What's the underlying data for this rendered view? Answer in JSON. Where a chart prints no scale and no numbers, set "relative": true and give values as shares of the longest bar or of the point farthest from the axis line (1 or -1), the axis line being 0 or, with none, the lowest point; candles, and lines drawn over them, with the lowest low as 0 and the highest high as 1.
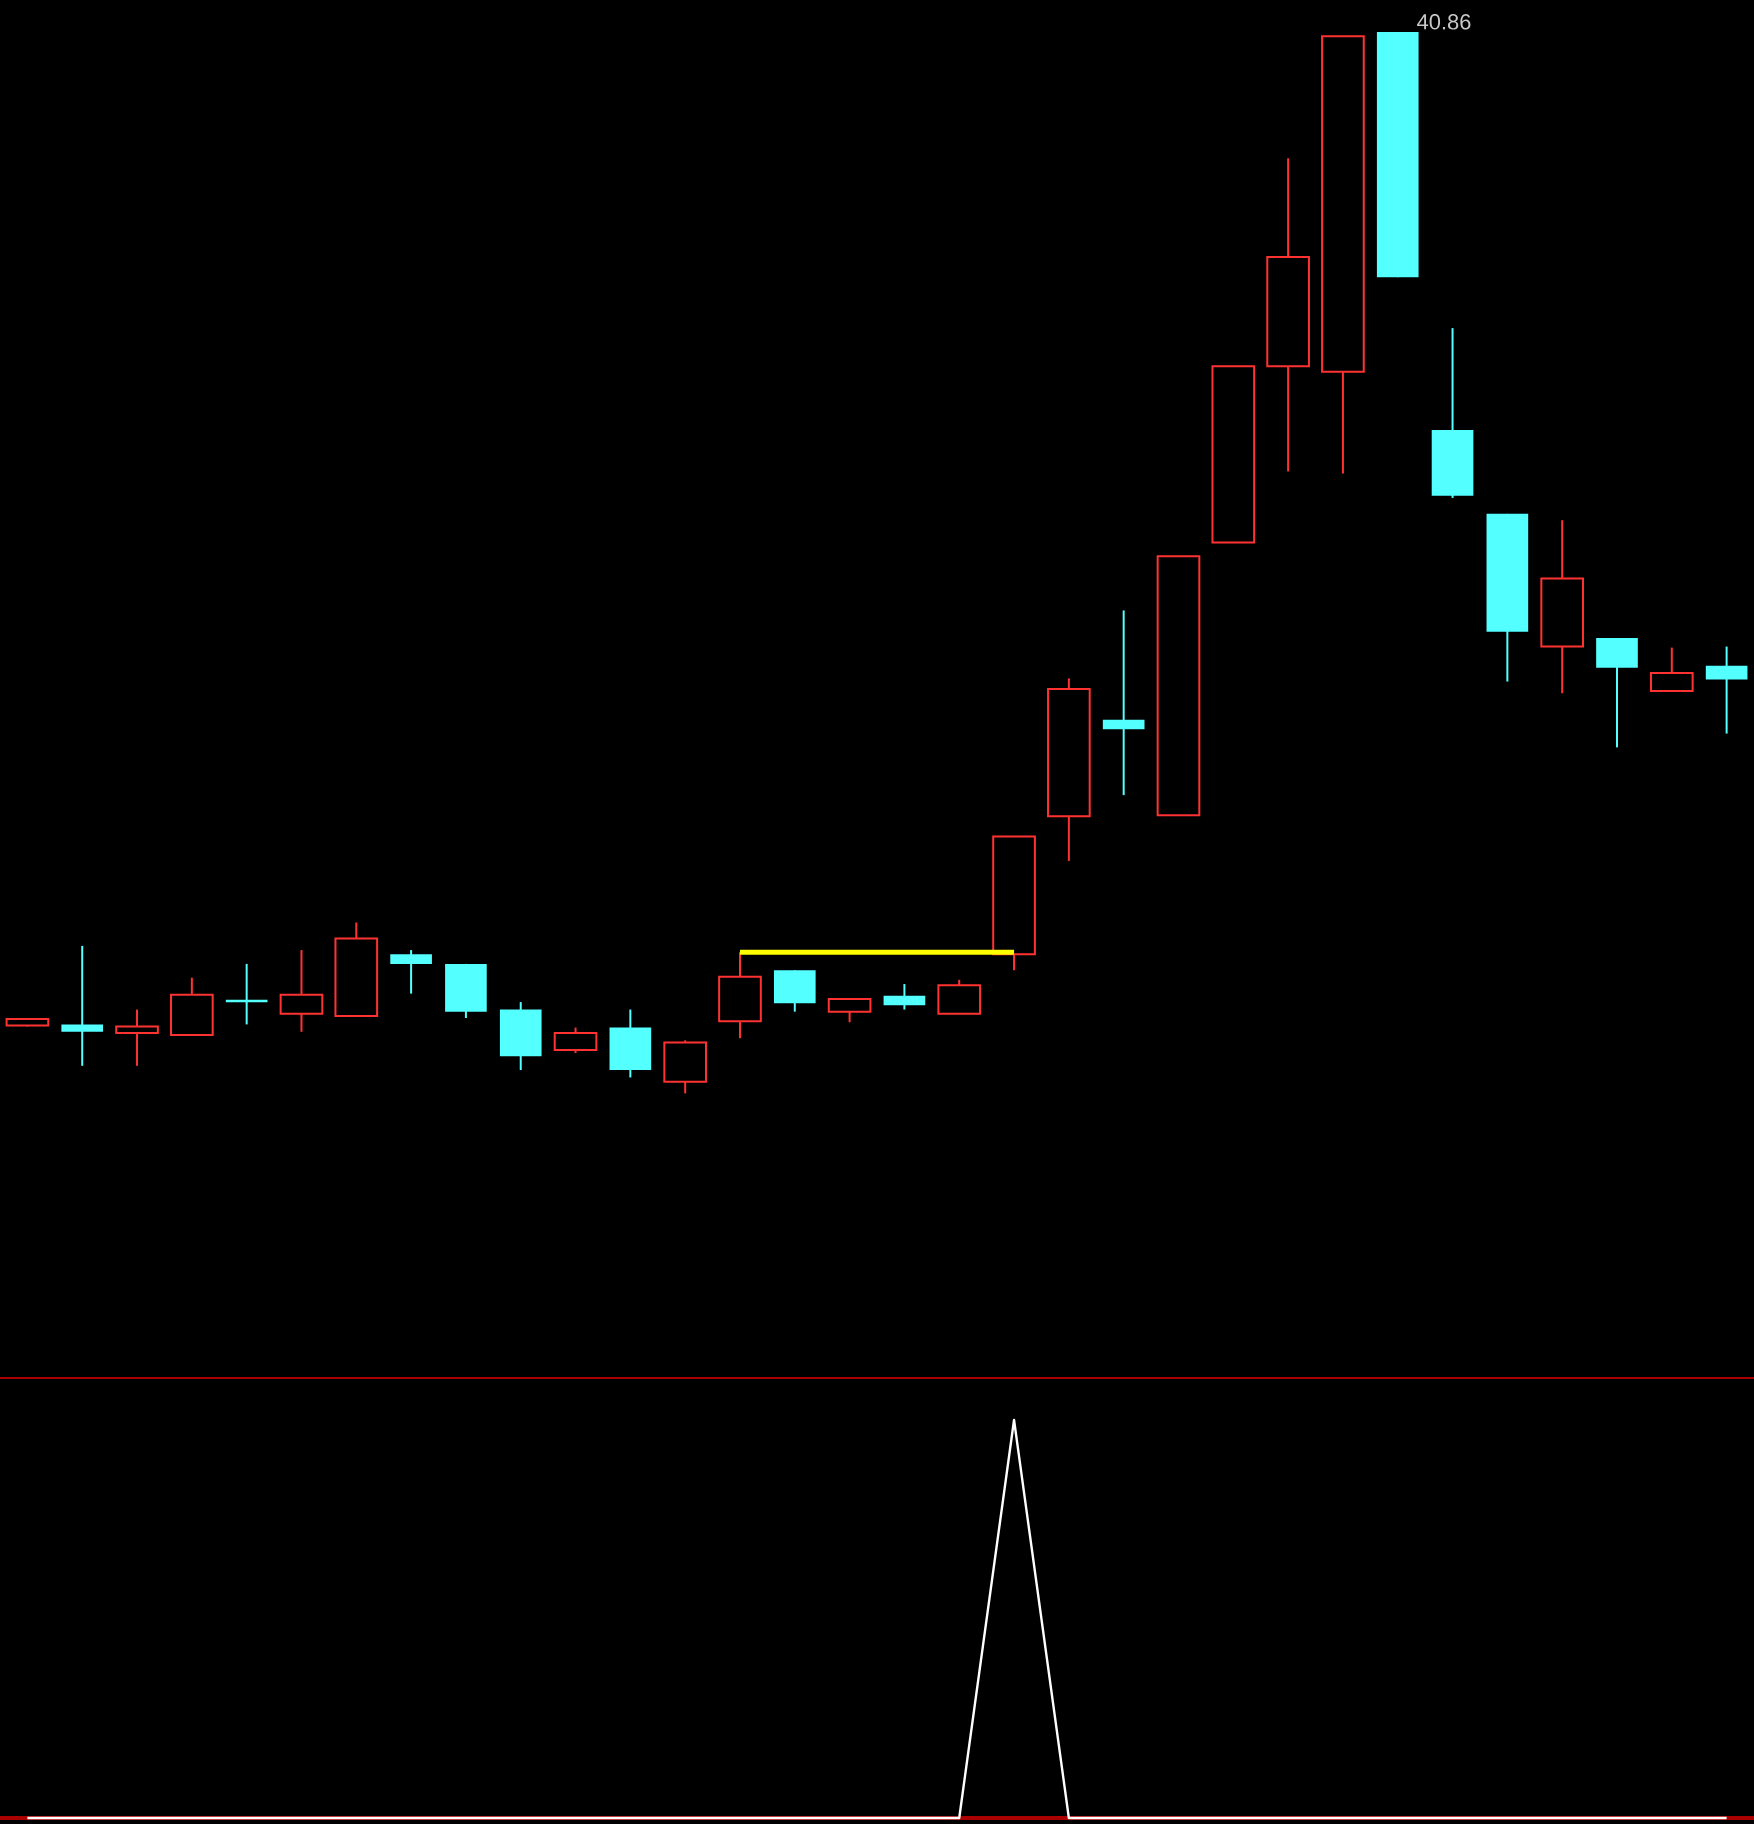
{
  "chart_data": [
    {
      "type": "candlestick",
      "relative": true,
      "categories": [
        null,
        null,
        null,
        null,
        null,
        null,
        null,
        null,
        null,
        null,
        null,
        null,
        null,
        null,
        null,
        null,
        null,
        null,
        null,
        null,
        null,
        null,
        null,
        null,
        null,
        null,
        null,
        null,
        null,
        null,
        null,
        null
      ],
      "ohlc": [
        [
          0.064,
          0.071,
          0.063,
          0.07
        ],
        [
          0.065,
          0.139,
          0.026,
          0.058
        ],
        [
          0.057,
          0.079,
          0.026,
          0.063
        ],
        [
          0.055,
          0.109,
          0.055,
          0.093
        ],
        [
          0.087,
          0.122,
          0.065,
          0.087
        ],
        [
          0.075,
          0.135,
          0.058,
          0.093
        ],
        [
          0.073,
          0.161,
          0.073,
          0.146
        ],
        [
          0.131,
          0.135,
          0.094,
          0.122
        ],
        [
          0.122,
          0.122,
          0.071,
          0.077
        ],
        [
          0.079,
          0.086,
          0.022,
          0.035
        ],
        [
          0.041,
          0.062,
          0.038,
          0.057
        ],
        [
          0.062,
          0.079,
          0.015,
          0.022
        ],
        [
          0.011,
          0.05,
          0.0,
          0.048
        ],
        [
          0.068,
          0.133,
          0.052,
          0.11
        ],
        [
          0.116,
          0.116,
          0.077,
          0.085
        ],
        [
          0.077,
          0.089,
          0.067,
          0.089
        ],
        [
          0.092,
          0.103,
          0.079,
          0.083
        ],
        [
          0.075,
          0.107,
          0.075,
          0.102
        ],
        [
          0.131,
          0.242,
          0.116,
          0.242
        ],
        [
          0.261,
          0.391,
          0.219,
          0.381
        ],
        [
          0.352,
          0.455,
          0.281,
          0.343
        ],
        [
          0.262,
          0.506,
          0.262,
          0.506
        ],
        [
          0.519,
          0.685,
          0.519,
          0.685
        ],
        [
          0.685,
          0.881,
          0.586,
          0.788
        ],
        [
          0.68,
          0.996,
          0.584,
          0.996
        ],
        [
          1.0,
          1.0,
          0.769,
          0.769
        ],
        [
          0.625,
          0.721,
          0.561,
          0.563
        ],
        [
          0.546,
          0.546,
          0.388,
          0.435
        ],
        [
          0.421,
          0.54,
          0.377,
          0.485
        ],
        [
          0.429,
          0.429,
          0.326,
          0.401
        ],
        [
          0.379,
          0.42,
          0.379,
          0.396
        ],
        [
          0.403,
          0.421,
          0.339,
          0.39
        ]
      ],
      "colors": [
        "#ff3232",
        "#54ffff",
        "#ff3232",
        "#ff3232",
        "#54ffff",
        "#ff3232",
        "#ff3232",
        "#54ffff",
        "#54ffff",
        "#54ffff",
        "#ff3232",
        "#54ffff",
        "#ff3232",
        "#ff3232",
        "#54ffff",
        "#ff3232",
        "#54ffff",
        "#ff3232",
        "#ff3232",
        "#ff3232",
        "#54ffff",
        "#ff3232",
        "#ff3232",
        "#ff3232",
        "#ff3232",
        "#54ffff",
        "#54ffff",
        "#54ffff",
        "#ff3232",
        "#54ffff",
        "#ff3232",
        "#54ffff"
      ],
      "series": [
        {
          "type": "line",
          "color": "#ffff00",
          "values": [
            null,
            null,
            null,
            null,
            null,
            null,
            null,
            null,
            null,
            null,
            null,
            null,
            null,
            0.133,
            0.133,
            0.133,
            0.133,
            0.133,
            0.133,
            null,
            null,
            null,
            null,
            null,
            null,
            null,
            null,
            null,
            null,
            null,
            null,
            null
          ]
        }
      ],
      "annotations": [
        "40.86"
      ]
    },
    {
      "type": "line",
      "relative": true,
      "categories": [
        null,
        null,
        null,
        null,
        null,
        null,
        null,
        null,
        null,
        null,
        null,
        null,
        null,
        null,
        null,
        null,
        null,
        null,
        null,
        null,
        null,
        null,
        null,
        null,
        null,
        null,
        null,
        null,
        null,
        null,
        null,
        null
      ],
      "color": "#ffffff",
      "values": [
        0,
        0,
        0,
        0,
        0,
        0,
        0,
        0,
        0,
        0,
        0,
        0,
        0,
        0,
        0,
        0,
        0,
        0,
        1,
        0,
        0,
        0,
        0,
        0,
        0,
        0,
        0,
        0,
        0,
        0,
        0,
        0
      ]
    }
  ]
}
